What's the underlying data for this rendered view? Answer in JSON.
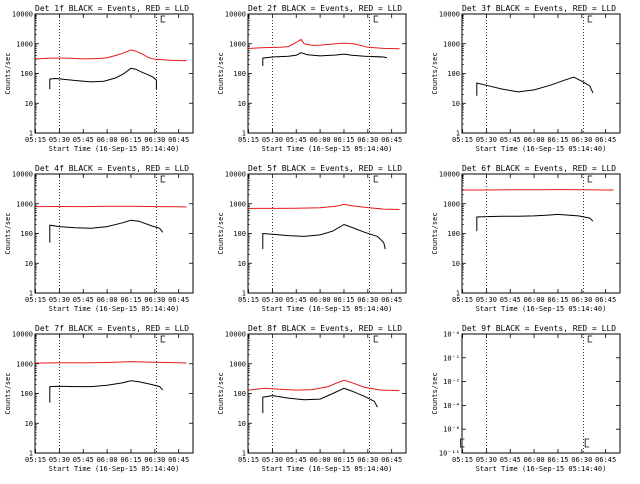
{
  "colors": {
    "events": "#000000",
    "lld": "#e41a1c",
    "axis": "#000000",
    "background": "#ffffff"
  },
  "common": {
    "x_tick_labels": [
      "05:15",
      "05:30",
      "05:45",
      "06:00",
      "06:15",
      "06:30",
      "06:45"
    ],
    "x_label": "Start Time (16-Sep-15 05:14:40)",
    "y_label": "Counts/sec",
    "markers": [
      "05:30",
      "06:31"
    ],
    "box_marker": "06:34"
  },
  "chart_data": [
    {
      "type": "line",
      "title": "Det 1f BLACK = Events, RED = LLD",
      "xlim": [
        "05:14:40",
        "06:54:00"
      ],
      "ylog": true,
      "ylim": [
        1,
        10000
      ],
      "y_tick_labels": [
        "1",
        "10",
        "100",
        "1000",
        "10000"
      ],
      "series": [
        {
          "name": "Events",
          "color": "#000000",
          "points": [
            [
              "05:24",
              30
            ],
            [
              "05:24",
              65
            ],
            [
              "05:27",
              68
            ],
            [
              "05:30",
              66
            ],
            [
              "05:40",
              58
            ],
            [
              "05:50",
              52
            ],
            [
              "05:58",
              55
            ],
            [
              "06:05",
              70
            ],
            [
              "06:10",
              95
            ],
            [
              "06:15",
              150
            ],
            [
              "06:18",
              140
            ],
            [
              "06:22",
              110
            ],
            [
              "06:26",
              90
            ],
            [
              "06:29",
              75
            ],
            [
              "06:31",
              60
            ],
            [
              "06:31",
              30
            ]
          ]
        },
        {
          "name": "LLD",
          "color": "#e41a1c",
          "points": [
            [
              "05:15",
              310
            ],
            [
              "05:25",
              330
            ],
            [
              "05:35",
              330
            ],
            [
              "05:45",
              310
            ],
            [
              "05:55",
              320
            ],
            [
              "06:00",
              340
            ],
            [
              "06:05",
              400
            ],
            [
              "06:10",
              480
            ],
            [
              "06:15",
              620
            ],
            [
              "06:18",
              560
            ],
            [
              "06:22",
              460
            ],
            [
              "06:26",
              340
            ],
            [
              "06:30",
              300
            ],
            [
              "06:40",
              280
            ],
            [
              "06:50",
              270
            ]
          ]
        }
      ]
    },
    {
      "type": "line",
      "title": "Det 2f BLACK = Events, RED = LLD",
      "xlim": [
        "05:14:40",
        "06:54:00"
      ],
      "ylog": true,
      "ylim": [
        1,
        10000
      ],
      "y_tick_labels": [
        "1",
        "10",
        "100",
        "1000",
        "10000"
      ],
      "series": [
        {
          "name": "Events",
          "color": "#000000",
          "points": [
            [
              "05:24",
              180
            ],
            [
              "05:24",
              330
            ],
            [
              "05:30",
              360
            ],
            [
              "05:40",
              380
            ],
            [
              "05:45",
              410
            ],
            [
              "05:48",
              500
            ],
            [
              "05:52",
              430
            ],
            [
              "06:00",
              390
            ],
            [
              "06:10",
              420
            ],
            [
              "06:15",
              450
            ],
            [
              "06:20",
              410
            ],
            [
              "06:28",
              380
            ],
            [
              "06:40",
              360
            ],
            [
              "06:42",
              340
            ]
          ]
        },
        {
          "name": "LLD",
          "color": "#e41a1c",
          "points": [
            [
              "05:15",
              700
            ],
            [
              "05:25",
              740
            ],
            [
              "05:35",
              760
            ],
            [
              "05:40",
              800
            ],
            [
              "05:45",
              1100
            ],
            [
              "05:48",
              1400
            ],
            [
              "05:50",
              1000
            ],
            [
              "05:55",
              880
            ],
            [
              "06:00",
              900
            ],
            [
              "06:10",
              1000
            ],
            [
              "06:15",
              1050
            ],
            [
              "06:22",
              980
            ],
            [
              "06:30",
              760
            ],
            [
              "06:40",
              700
            ],
            [
              "06:50",
              680
            ]
          ]
        }
      ]
    },
    {
      "type": "line",
      "title": "Det 3f BLACK = Events, RED = LLD",
      "xlim": [
        "05:14:40",
        "06:54:00"
      ],
      "ylog": true,
      "ylim": [
        1,
        10000
      ],
      "y_tick_labels": [
        "1",
        "10",
        "100",
        "1000",
        "10000"
      ],
      "series": [
        {
          "name": "Events",
          "color": "#000000",
          "points": [
            [
              "05:24",
              18
            ],
            [
              "05:24",
              48
            ],
            [
              "05:30",
              40
            ],
            [
              "05:40",
              30
            ],
            [
              "05:50",
              24
            ],
            [
              "06:00",
              28
            ],
            [
              "06:10",
              40
            ],
            [
              "06:20",
              62
            ],
            [
              "06:25",
              75
            ],
            [
              "06:30",
              55
            ],
            [
              "06:35",
              38
            ],
            [
              "06:37",
              22
            ]
          ]
        }
      ]
    },
    {
      "type": "line",
      "title": "Det 4f BLACK = Events, RED = LLD",
      "xlim": [
        "05:14:40",
        "06:54:00"
      ],
      "ylog": true,
      "ylim": [
        1,
        10000
      ],
      "y_tick_labels": [
        "1",
        "10",
        "100",
        "1000",
        "10000"
      ],
      "series": [
        {
          "name": "Events",
          "color": "#000000",
          "points": [
            [
              "05:24",
              50
            ],
            [
              "05:24",
              190
            ],
            [
              "05:30",
              170
            ],
            [
              "05:40",
              155
            ],
            [
              "05:50",
              150
            ],
            [
              "06:00",
              170
            ],
            [
              "06:10",
              230
            ],
            [
              "06:15",
              280
            ],
            [
              "06:20",
              260
            ],
            [
              "06:28",
              180
            ],
            [
              "06:33",
              150
            ],
            [
              "06:35",
              110
            ]
          ]
        },
        {
          "name": "LLD",
          "color": "#e41a1c",
          "points": [
            [
              "05:15",
              800
            ],
            [
              "05:30",
              810
            ],
            [
              "05:45",
              800
            ],
            [
              "06:00",
              820
            ],
            [
              "06:15",
              830
            ],
            [
              "06:30",
              800
            ],
            [
              "06:45",
              790
            ],
            [
              "06:50",
              780
            ]
          ]
        }
      ]
    },
    {
      "type": "line",
      "title": "Det 5f BLACK = Events, RED = LLD",
      "xlim": [
        "05:14:40",
        "06:54:00"
      ],
      "ylog": true,
      "ylim": [
        1,
        10000
      ],
      "y_tick_labels": [
        "1",
        "10",
        "100",
        "1000",
        "10000"
      ],
      "series": [
        {
          "name": "Events",
          "color": "#000000",
          "points": [
            [
              "05:24",
              30
            ],
            [
              "05:24",
              100
            ],
            [
              "05:30",
              95
            ],
            [
              "05:40",
              85
            ],
            [
              "05:50",
              80
            ],
            [
              "06:00",
              90
            ],
            [
              "06:08",
              120
            ],
            [
              "06:15",
              200
            ],
            [
              "06:20",
              160
            ],
            [
              "06:28",
              110
            ],
            [
              "06:36",
              80
            ],
            [
              "06:40",
              50
            ],
            [
              "06:41",
              30
            ]
          ]
        },
        {
          "name": "LLD",
          "color": "#e41a1c",
          "points": [
            [
              "05:15",
              700
            ],
            [
              "05:30",
              700
            ],
            [
              "05:45",
              710
            ],
            [
              "06:00",
              730
            ],
            [
              "06:10",
              820
            ],
            [
              "06:15",
              950
            ],
            [
              "06:20",
              860
            ],
            [
              "06:30",
              740
            ],
            [
              "06:40",
              660
            ],
            [
              "06:50",
              640
            ]
          ]
        }
      ]
    },
    {
      "type": "line",
      "title": "Det 6f BLACK = Events, RED = LLD",
      "xlim": [
        "05:14:40",
        "06:54:00"
      ],
      "ylog": true,
      "ylim": [
        1,
        10000
      ],
      "y_tick_labels": [
        "1",
        "10",
        "100",
        "1000",
        "10000"
      ],
      "series": [
        {
          "name": "Events",
          "color": "#000000",
          "points": [
            [
              "05:24",
              120
            ],
            [
              "05:24",
              360
            ],
            [
              "05:30",
              370
            ],
            [
              "05:40",
              380
            ],
            [
              "05:50",
              380
            ],
            [
              "06:00",
              390
            ],
            [
              "06:10",
              420
            ],
            [
              "06:15",
              440
            ],
            [
              "06:20",
              420
            ],
            [
              "06:28",
              390
            ],
            [
              "06:35",
              330
            ],
            [
              "06:37",
              260
            ]
          ]
        },
        {
          "name": "LLD",
          "color": "#e41a1c",
          "points": [
            [
              "05:15",
              2900
            ],
            [
              "05:30",
              2900
            ],
            [
              "05:45",
              2950
            ],
            [
              "06:00",
              2950
            ],
            [
              "06:15",
              3000
            ],
            [
              "06:30",
              2950
            ],
            [
              "06:45",
              2900
            ],
            [
              "06:50",
              2900
            ]
          ]
        }
      ]
    },
    {
      "type": "line",
      "title": "Det 7f BLACK = Events, RED = LLD",
      "xlim": [
        "05:14:40",
        "06:54:00"
      ],
      "ylog": true,
      "ylim": [
        1,
        10000
      ],
      "y_tick_labels": [
        "1",
        "10",
        "100",
        "1000",
        "10000"
      ],
      "series": [
        {
          "name": "Events",
          "color": "#000000",
          "points": [
            [
              "05:24",
              50
            ],
            [
              "05:24",
              170
            ],
            [
              "05:30",
              175
            ],
            [
              "05:40",
              170
            ],
            [
              "05:50",
              170
            ],
            [
              "06:00",
              190
            ],
            [
              "06:10",
              230
            ],
            [
              "06:15",
              270
            ],
            [
              "06:20",
              250
            ],
            [
              "06:28",
              200
            ],
            [
              "06:33",
              170
            ],
            [
              "06:35",
              130
            ]
          ]
        },
        {
          "name": "LLD",
          "color": "#e41a1c",
          "points": [
            [
              "05:15",
              1050
            ],
            [
              "05:30",
              1080
            ],
            [
              "05:45",
              1070
            ],
            [
              "06:00",
              1100
            ],
            [
              "06:15",
              1180
            ],
            [
              "06:30",
              1120
            ],
            [
              "06:45",
              1080
            ],
            [
              "06:50",
              1050
            ]
          ]
        }
      ]
    },
    {
      "type": "line",
      "title": "Det 8f BLACK = Events, RED = LLD",
      "xlim": [
        "05:14:40",
        "06:54:00"
      ],
      "ylog": true,
      "ylim": [
        1,
        10000
      ],
      "y_tick_labels": [
        "1",
        "10",
        "100",
        "1000",
        "10000"
      ],
      "series": [
        {
          "name": "Events",
          "color": "#000000",
          "points": [
            [
              "05:24",
              22
            ],
            [
              "05:24",
              75
            ],
            [
              "05:30",
              85
            ],
            [
              "05:40",
              70
            ],
            [
              "05:50",
              62
            ],
            [
              "06:00",
              65
            ],
            [
              "06:08",
              100
            ],
            [
              "06:15",
              150
            ],
            [
              "06:20",
              120
            ],
            [
              "06:28",
              80
            ],
            [
              "06:34",
              55
            ],
            [
              "06:36",
              35
            ]
          ]
        },
        {
          "name": "LLD",
          "color": "#e41a1c",
          "points": [
            [
              "05:15",
              130
            ],
            [
              "05:25",
              150
            ],
            [
              "05:35",
              140
            ],
            [
              "05:45",
              130
            ],
            [
              "05:55",
              135
            ],
            [
              "06:05",
              170
            ],
            [
              "06:10",
              220
            ],
            [
              "06:15",
              280
            ],
            [
              "06:20",
              230
            ],
            [
              "06:28",
              160
            ],
            [
              "06:38",
              130
            ],
            [
              "06:50",
              125
            ]
          ]
        }
      ]
    },
    {
      "type": "line",
      "title": "Det 9f BLACK = Events, RED = LLD",
      "xlim": [
        "05:14:40",
        "06:54:00"
      ],
      "ylog": true,
      "ylim": [
        1,
        1e-11
      ],
      "y_tick_labels": [
        "10⁻¹¹",
        "10⁻⁶",
        "10⁻⁴",
        "10⁻²",
        "10⁻¹",
        "10⁻⁰"
      ],
      "series": []
    }
  ]
}
